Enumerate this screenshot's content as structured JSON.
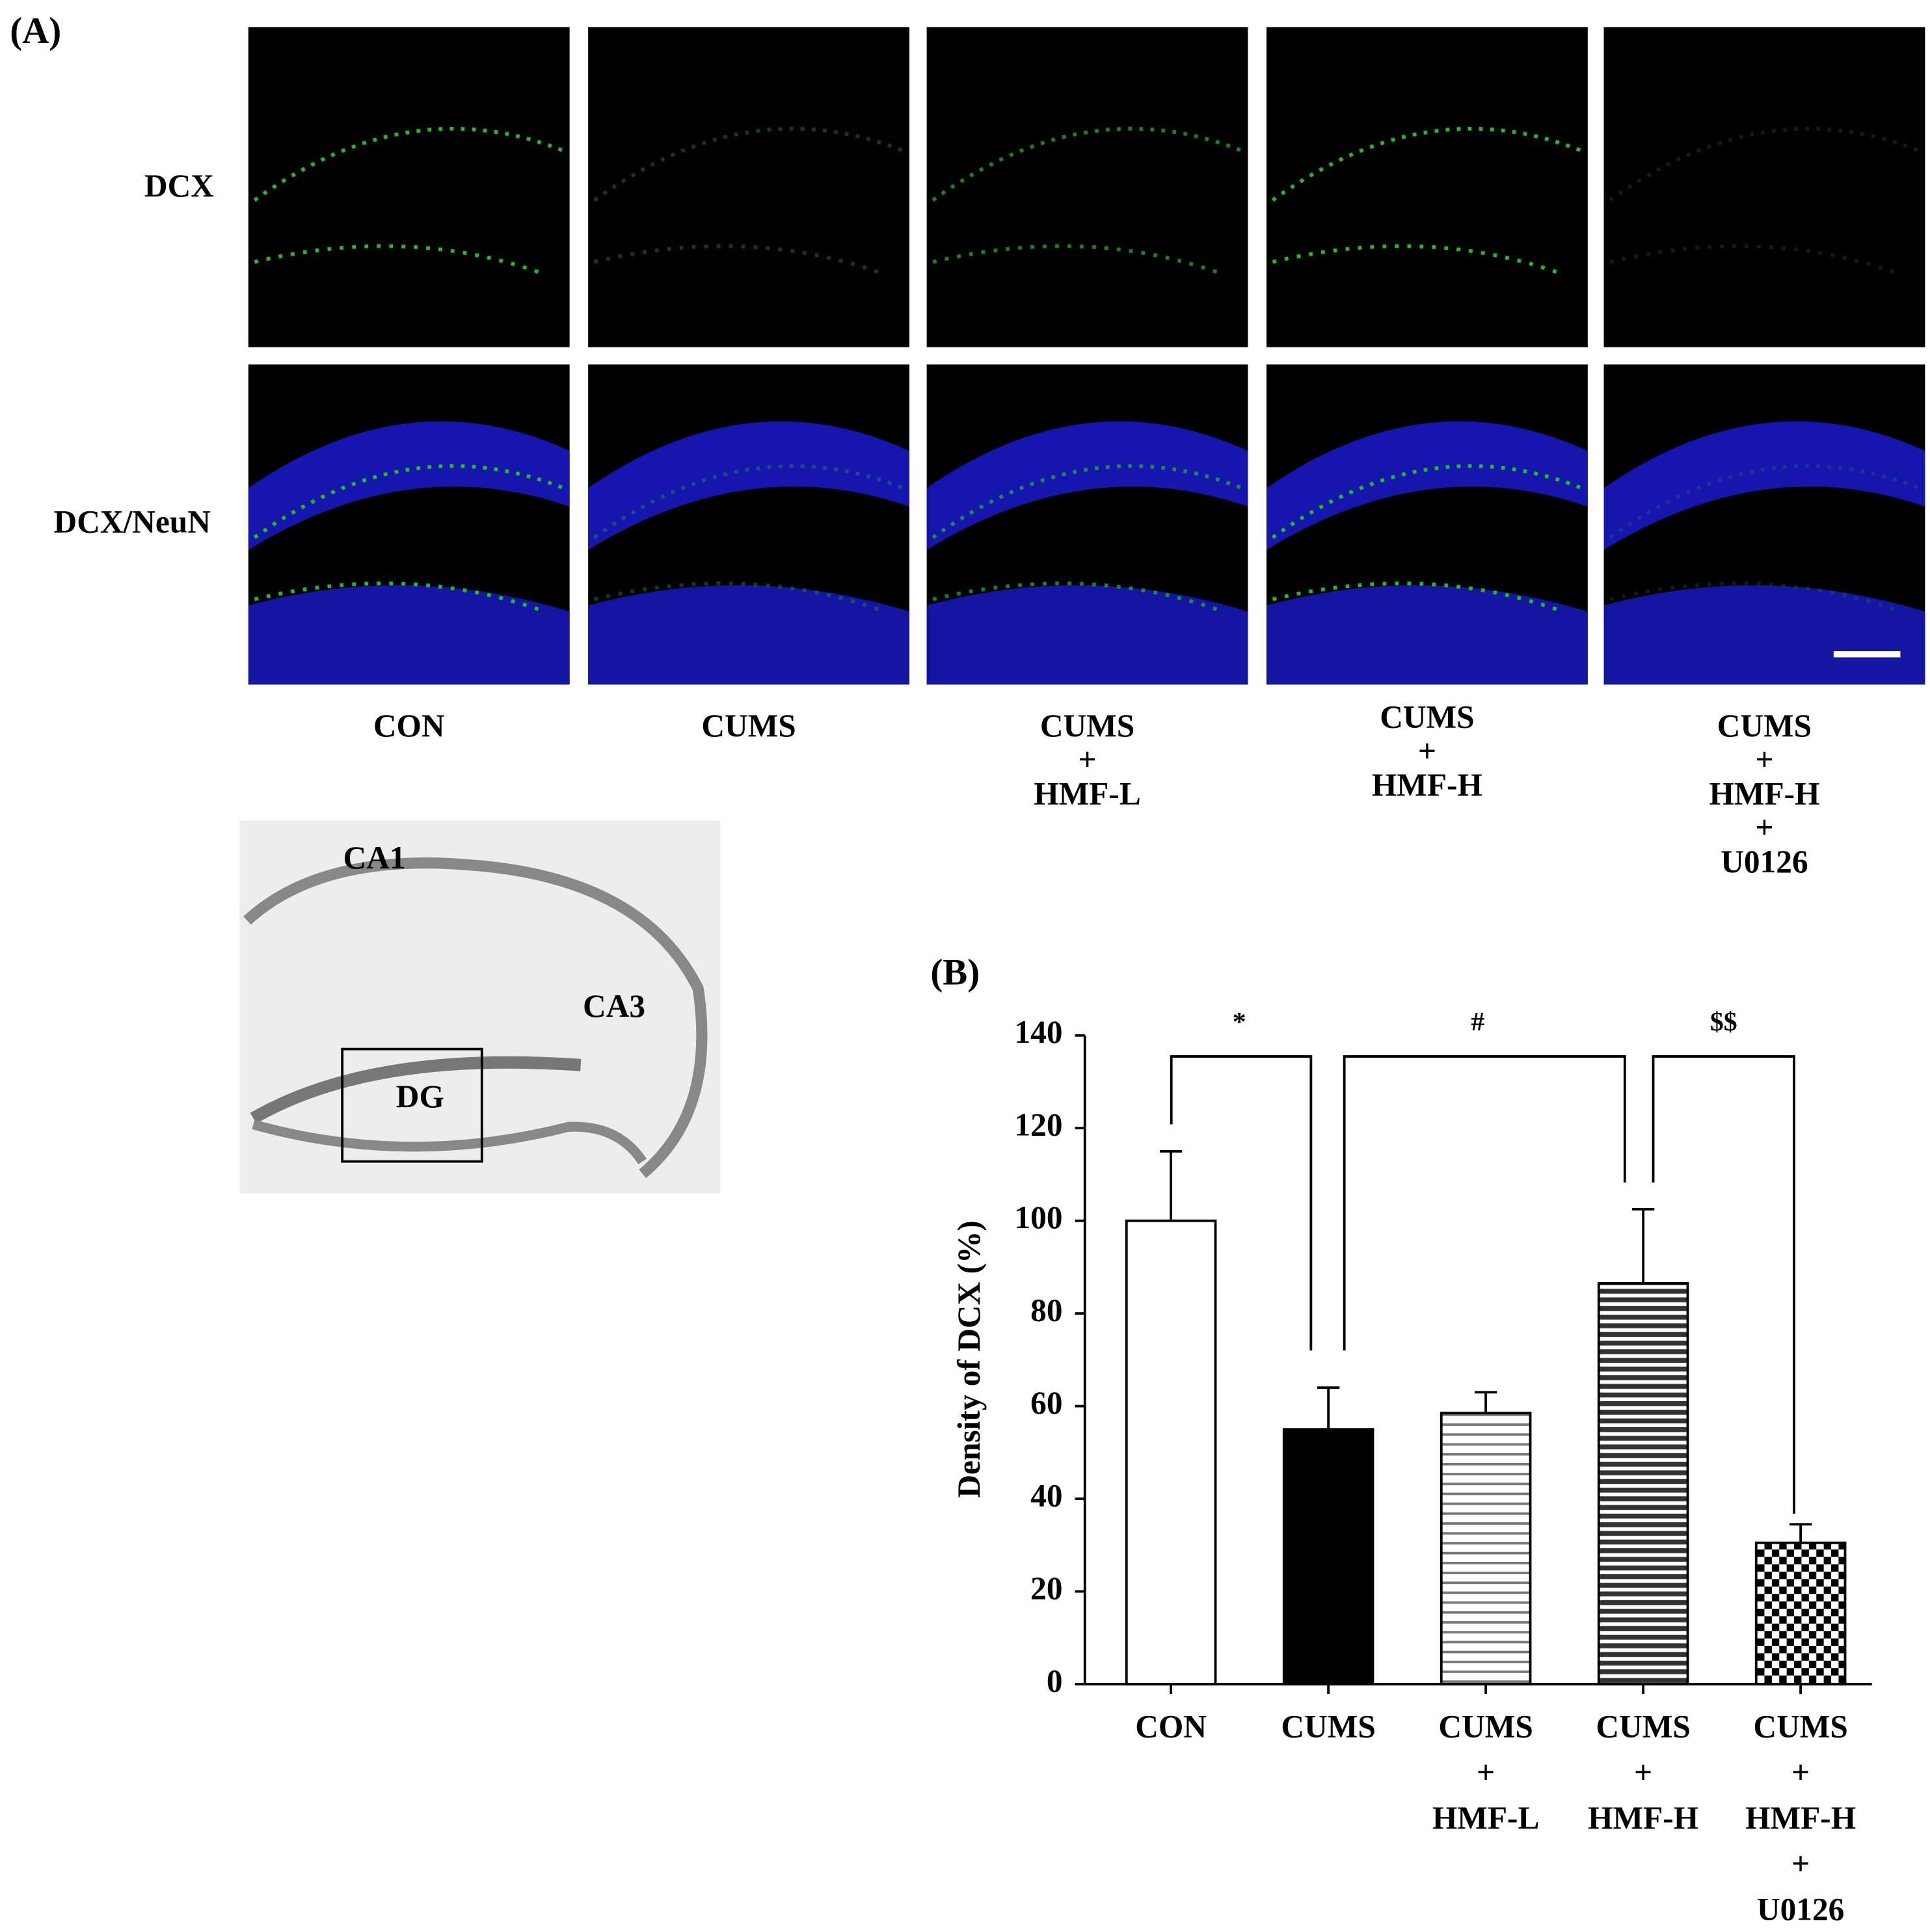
{
  "panel_a": {
    "label": "(A)",
    "row_labels": [
      "DCX",
      "DCX/NeuN"
    ],
    "columns": [
      [
        "CON"
      ],
      [
        "CUMS"
      ],
      [
        "CUMS",
        "+",
        "HMF-L"
      ],
      [
        "CUMS",
        "+",
        "HMF-H"
      ],
      [
        "CUMS",
        "+",
        "HMF-H",
        "+",
        "U0126"
      ]
    ],
    "inset_labels": [
      "CA1",
      "CA3",
      "DG"
    ]
  },
  "chart_data": {
    "type": "bar",
    "panel_label": "(B)",
    "y_label": "Density of DCX (%)",
    "categories": [
      [
        "CON"
      ],
      [
        "CUMS"
      ],
      [
        "CUMS",
        "+",
        "HMF-L"
      ],
      [
        "CUMS",
        "+",
        "HMF-H"
      ],
      [
        "CUMS",
        "+",
        "HMF-H",
        "+",
        "U0126"
      ]
    ],
    "values": [
      100,
      55,
      58.5,
      86.5,
      30.5
    ],
    "errors": [
      15,
      9,
      4.5,
      16,
      4
    ],
    "fills": [
      "white",
      "black",
      "light-stripes",
      "dark-stripes",
      "checker"
    ],
    "ylim": [
      0,
      140
    ],
    "yticks": [
      0,
      20,
      40,
      60,
      80,
      100,
      120,
      140
    ],
    "significance": [
      "*",
      "#",
      "$$"
    ]
  }
}
